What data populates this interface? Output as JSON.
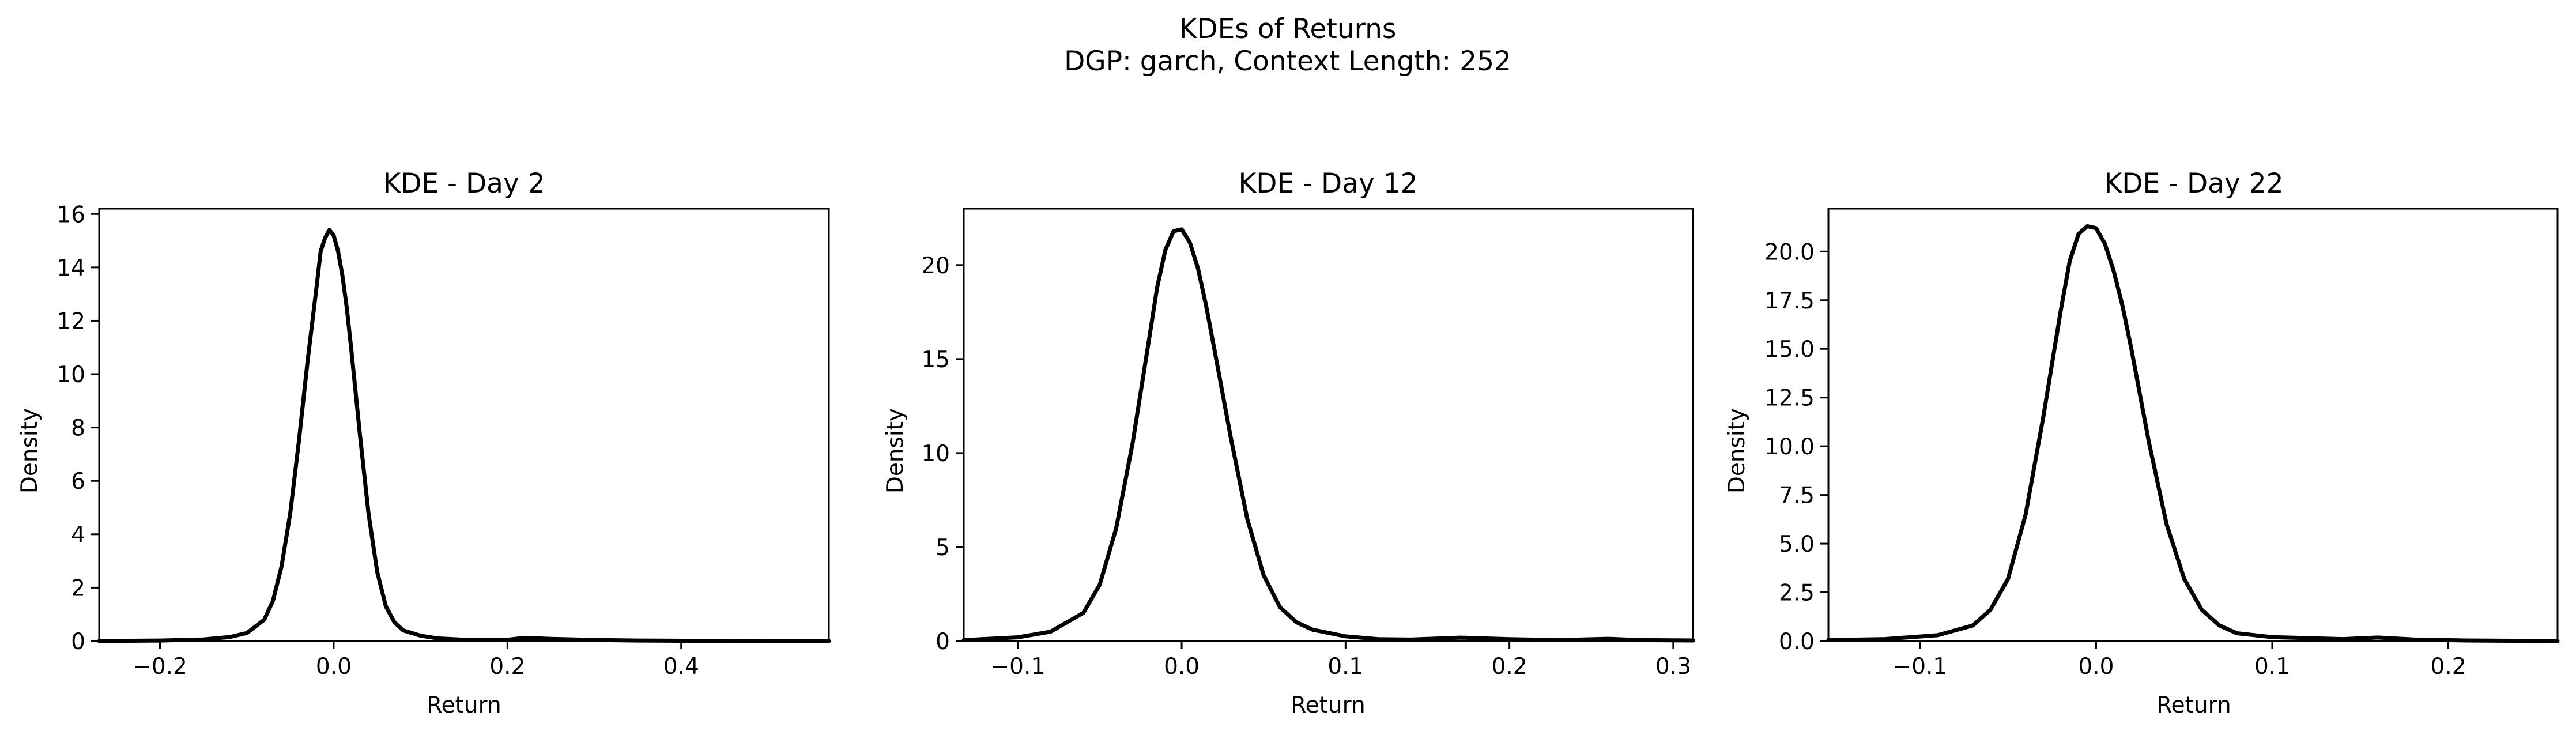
{
  "suptitle": {
    "line1": "KDEs of Returns",
    "line2": "DGP: garch, Context Length: 252"
  },
  "chart_data": [
    {
      "type": "line",
      "title": "KDE - Day 2",
      "xlabel": "Return",
      "ylabel": "Density",
      "xlim": [
        -0.27,
        0.57
      ],
      "ylim": [
        0,
        16.2
      ],
      "xticks": [
        -0.2,
        0.0,
        0.2,
        0.4
      ],
      "xtick_labels": [
        "−0.2",
        "0.0",
        "0.2",
        "0.4"
      ],
      "yticks": [
        0,
        2,
        4,
        6,
        8,
        10,
        12,
        14,
        16
      ],
      "ytick_labels": [
        "0",
        "2",
        "4",
        "6",
        "8",
        "10",
        "12",
        "14",
        "16"
      ],
      "grid": false,
      "color": "#000000",
      "x": [
        -0.27,
        -0.2,
        -0.15,
        -0.12,
        -0.1,
        -0.08,
        -0.07,
        -0.06,
        -0.05,
        -0.04,
        -0.03,
        -0.02,
        -0.015,
        -0.01,
        -0.005,
        0.0,
        0.005,
        0.01,
        0.015,
        0.02,
        0.03,
        0.04,
        0.05,
        0.06,
        0.07,
        0.08,
        0.1,
        0.12,
        0.15,
        0.2,
        0.22,
        0.25,
        0.3,
        0.35,
        0.4,
        0.45,
        0.5,
        0.57
      ],
      "y": [
        0.0,
        0.02,
        0.06,
        0.15,
        0.3,
        0.8,
        1.5,
        2.8,
        4.8,
        7.5,
        10.5,
        13.2,
        14.6,
        15.1,
        15.4,
        15.2,
        14.6,
        13.7,
        12.5,
        11.0,
        7.8,
        4.8,
        2.6,
        1.3,
        0.7,
        0.4,
        0.2,
        0.1,
        0.05,
        0.05,
        0.12,
        0.08,
        0.04,
        0.02,
        0.01,
        0.01,
        0.0,
        0.0
      ]
    },
    {
      "type": "line",
      "title": "KDE - Day 12",
      "xlabel": "Return",
      "ylabel": "Density",
      "xlim": [
        -0.133,
        0.312
      ],
      "ylim": [
        0,
        23
      ],
      "xticks": [
        -0.1,
        0.0,
        0.1,
        0.2,
        0.3
      ],
      "xtick_labels": [
        "−0.1",
        "0.0",
        "0.1",
        "0.2",
        "0.3"
      ],
      "yticks": [
        0,
        5,
        10,
        15,
        20
      ],
      "ytick_labels": [
        "0",
        "5",
        "10",
        "15",
        "20"
      ],
      "grid": false,
      "color": "#000000",
      "x": [
        -0.133,
        -0.1,
        -0.08,
        -0.06,
        -0.05,
        -0.04,
        -0.03,
        -0.02,
        -0.015,
        -0.01,
        -0.005,
        0.0,
        0.005,
        0.01,
        0.015,
        0.02,
        0.03,
        0.04,
        0.05,
        0.06,
        0.07,
        0.08,
        0.1,
        0.12,
        0.14,
        0.17,
        0.2,
        0.23,
        0.26,
        0.28,
        0.312
      ],
      "y": [
        0.05,
        0.2,
        0.5,
        1.5,
        3.0,
        6.0,
        10.5,
        16.0,
        18.8,
        20.8,
        21.8,
        21.9,
        21.2,
        19.8,
        17.8,
        15.5,
        10.8,
        6.5,
        3.5,
        1.8,
        1.0,
        0.6,
        0.25,
        0.1,
        0.08,
        0.18,
        0.1,
        0.05,
        0.12,
        0.05,
        0.03
      ]
    },
    {
      "type": "line",
      "title": "KDE - Day 22",
      "xlabel": "Return",
      "ylabel": "Density",
      "xlim": [
        -0.152,
        0.262
      ],
      "ylim": [
        0,
        22.2
      ],
      "xticks": [
        -0.1,
        0.0,
        0.1,
        0.2
      ],
      "xtick_labels": [
        "−0.1",
        "0.0",
        "0.1",
        "0.2"
      ],
      "yticks": [
        0.0,
        2.5,
        5.0,
        7.5,
        10.0,
        12.5,
        15.0,
        17.5,
        20.0
      ],
      "ytick_labels": [
        "0.0",
        "2.5",
        "5.0",
        "7.5",
        "10.0",
        "12.5",
        "15.0",
        "17.5",
        "20.0"
      ],
      "grid": false,
      "color": "#000000",
      "x": [
        -0.152,
        -0.12,
        -0.09,
        -0.07,
        -0.06,
        -0.05,
        -0.04,
        -0.03,
        -0.02,
        -0.015,
        -0.01,
        -0.005,
        0.0,
        0.005,
        0.01,
        0.015,
        0.02,
        0.03,
        0.04,
        0.05,
        0.06,
        0.07,
        0.08,
        0.1,
        0.12,
        0.14,
        0.16,
        0.18,
        0.21,
        0.262
      ],
      "y": [
        0.05,
        0.1,
        0.3,
        0.8,
        1.6,
        3.2,
        6.5,
        11.5,
        17.0,
        19.5,
        20.9,
        21.3,
        21.2,
        20.4,
        19.0,
        17.2,
        15.0,
        10.2,
        6.0,
        3.2,
        1.6,
        0.8,
        0.4,
        0.2,
        0.15,
        0.1,
        0.18,
        0.08,
        0.03,
        0.0
      ]
    }
  ]
}
